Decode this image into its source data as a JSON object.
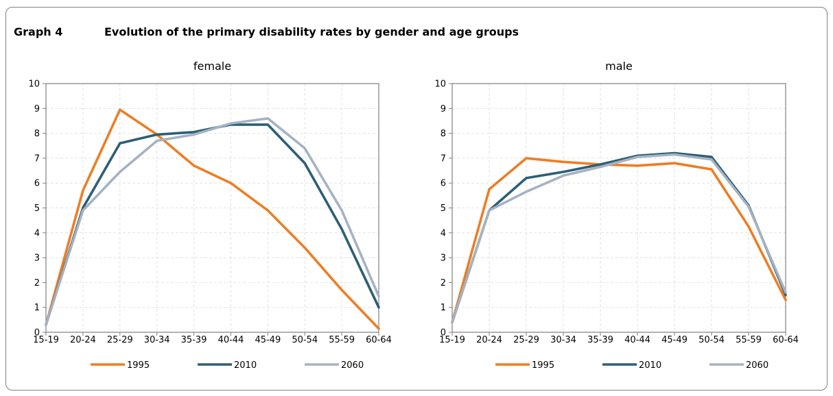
{
  "header": {
    "label": "Graph 4",
    "title": "Evolution of the primary disability rates by gender and age groups"
  },
  "colors": {
    "1995": "#ee7d22",
    "2010": "#2c5f74",
    "2060": "#a5b2c2"
  },
  "chart_data": [
    {
      "type": "line",
      "title": "female",
      "categories": [
        "15-19",
        "20-24",
        "25-29",
        "30-34",
        "35-39",
        "40-44",
        "45-49",
        "50-54",
        "55-59",
        "60-64"
      ],
      "ylim": [
        0,
        10
      ],
      "yticks": [
        "0",
        "1",
        "2",
        "3",
        "4",
        "5",
        "6",
        "7",
        "8",
        "9",
        "10"
      ],
      "grid": true,
      "legend_position": "bottom",
      "series": [
        {
          "name": "1995",
          "values": [
            0.3,
            5.7,
            8.95,
            7.95,
            6.7,
            6.0,
            4.9,
            3.4,
            1.7,
            0.15
          ]
        },
        {
          "name": "2010",
          "values": [
            0.3,
            5.0,
            7.6,
            7.95,
            8.05,
            8.35,
            8.35,
            6.8,
            4.15,
            1.0
          ]
        },
        {
          "name": "2060",
          "values": [
            0.3,
            4.9,
            6.45,
            7.7,
            7.95,
            8.4,
            8.6,
            7.4,
            4.9,
            1.45
          ]
        }
      ]
    },
    {
      "type": "line",
      "title": "male",
      "categories": [
        "15-19",
        "20-24",
        "25-29",
        "30-34",
        "35-39",
        "40-44",
        "45-49",
        "50-54",
        "55-59",
        "60-64"
      ],
      "ylim": [
        0,
        10
      ],
      "yticks": [
        "0",
        "1",
        "2",
        "3",
        "4",
        "5",
        "6",
        "7",
        "8",
        "9",
        "10"
      ],
      "grid": true,
      "legend_position": "bottom",
      "series": [
        {
          "name": "1995",
          "values": [
            0.4,
            5.75,
            7.0,
            6.85,
            6.75,
            6.7,
            6.8,
            6.55,
            4.25,
            1.3
          ]
        },
        {
          "name": "2010",
          "values": [
            0.4,
            4.9,
            6.2,
            6.45,
            6.75,
            7.1,
            7.2,
            7.05,
            5.1,
            1.5
          ]
        },
        {
          "name": "2060",
          "values": [
            0.4,
            4.9,
            5.65,
            6.3,
            6.65,
            7.05,
            7.15,
            6.95,
            5.05,
            1.6
          ]
        }
      ]
    }
  ]
}
